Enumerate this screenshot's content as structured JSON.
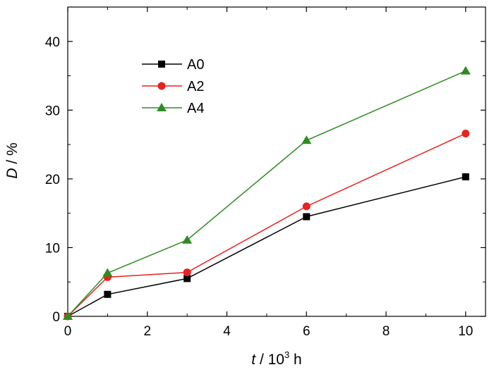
{
  "chart_data": {
    "type": "line",
    "x": [
      0,
      1,
      3,
      6,
      10
    ],
    "xlim": [
      0,
      10.5
    ],
    "ylim": [
      0,
      45
    ],
    "xticks": [
      0,
      2,
      4,
      6,
      8,
      10
    ],
    "yticks": [
      0,
      10,
      20,
      30,
      40
    ],
    "xlabel": {
      "var": "t",
      "rest": " / 10",
      "sup": "3",
      "unit": " h"
    },
    "ylabel": {
      "var": "D",
      "rest": " / %"
    },
    "legend_position": "top-left",
    "grid": false,
    "series": [
      {
        "name": "A0",
        "values": [
          0,
          3.2,
          5.5,
          14.5,
          20.3
        ],
        "color": "#000000",
        "marker": "square"
      },
      {
        "name": "A2",
        "values": [
          0,
          5.7,
          6.4,
          16.0,
          26.6
        ],
        "color": "#e8221e",
        "marker": "circle"
      },
      {
        "name": "A4",
        "values": [
          0,
          6.3,
          11.1,
          25.6,
          35.7
        ],
        "color": "#2e8b22",
        "marker": "triangle"
      }
    ]
  }
}
